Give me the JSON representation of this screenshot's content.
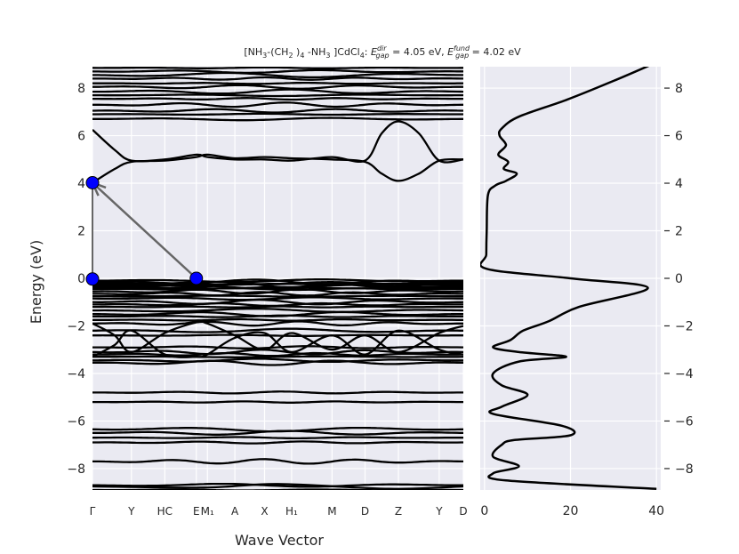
{
  "chart_data": [
    {
      "type": "line",
      "title": "[NH3-(CH2 )4 -NH3 ]CdCl4: E_gap^dir = 4.05 eV, E_gap^fund = 4.02 eV",
      "title_parts": {
        "formula_a": "[NH",
        "sub_1": "3",
        "formula_b": "-(CH",
        "sub_2": "2",
        "formula_c": " )",
        "sub_3": "4",
        "formula_d": " -NH",
        "sub_4": "3",
        "formula_e": " ]CdCl",
        "sub_5": "4",
        "formula_f": ": ",
        "egap_symbol": "E",
        "dir_superscript": "dir",
        "gap_subscript": "gap",
        "dir_value": " = 4.05 eV, ",
        "fund_superscript": "fund",
        "fund_value": " = 4.02 eV"
      },
      "xlabel": "Wave Vector",
      "ylabel": "Energy (eV)",
      "ylim": [
        -8.9,
        8.9
      ],
      "yticks": [
        -8,
        -6,
        -4,
        -2,
        0,
        2,
        4,
        6,
        8
      ],
      "ytick_labels": [
        "−8",
        "−6",
        "−4",
        "−2",
        "0",
        "2",
        "4",
        "6",
        "8"
      ],
      "high_symmetry_points": [
        {
          "label": "Γ",
          "x": 0.0
        },
        {
          "label": "Y",
          "x": 0.105
        },
        {
          "label": "HC",
          "x": 0.195
        },
        {
          "label": "E",
          "x": 0.28
        },
        {
          "label": "M₁",
          "x": 0.31
        },
        {
          "label": "A",
          "x": 0.384
        },
        {
          "label": "X",
          "x": 0.464
        },
        {
          "label": "H₁",
          "x": 0.537
        },
        {
          "label": "M",
          "x": 0.646
        },
        {
          "label": "D",
          "x": 0.735
        },
        {
          "label": "Z",
          "x": 0.825
        },
        {
          "label": "Y",
          "x": 0.935
        },
        {
          "label": "D",
          "x": 1.0
        }
      ],
      "band_edges": {
        "cbm": {
          "x": 0.0,
          "y": 4.02
        },
        "vbm_direct": {
          "x": 0.0,
          "y": -0.03
        },
        "vbm_fund": {
          "x": 0.28,
          "y": 0.0
        }
      },
      "bands": {
        "valence_flat": [
          -0.1,
          -0.15,
          -0.2,
          -0.25,
          -0.3,
          -0.35,
          -0.4,
          -0.45,
          -0.55,
          -0.65,
          -0.75,
          -0.85,
          -1.0,
          -1.1,
          -1.2,
          -1.35,
          -1.5,
          -1.6,
          -1.75,
          -1.9,
          -2.2,
          -2.4,
          -2.9,
          -3.1,
          -3.2,
          -3.3,
          -3.45,
          -3.55,
          -4.8,
          -5.2,
          -6.35,
          -6.5,
          -6.7,
          -6.9,
          -7.7,
          -8.7,
          -8.9
        ],
        "conduction_flat": [
          6.7,
          6.9,
          7.05,
          7.3,
          7.55,
          7.7,
          7.85,
          8.05,
          8.2,
          8.4,
          8.55,
          8.7,
          8.85
        ],
        "dispersive": [
          {
            "x": [
              0.0,
              0.06,
              0.105,
              0.195,
              0.28,
              0.31,
              0.384,
              0.464,
              0.537,
              0.646,
              0.735,
              0.78,
              0.825,
              0.88,
              0.935,
              1.0
            ],
            "y": [
              4.02,
              4.6,
              4.9,
              4.95,
              5.1,
              5.2,
              5.05,
              5.1,
              5.05,
              5.0,
              4.9,
              4.4,
              4.1,
              4.4,
              4.95,
              5.0
            ]
          },
          {
            "x": [
              0.0,
              0.06,
              0.105,
              0.195,
              0.28,
              0.31,
              0.384,
              0.464,
              0.537,
              0.646,
              0.735,
              0.78,
              0.825,
              0.88,
              0.935,
              1.0
            ],
            "y": [
              6.25,
              5.4,
              4.95,
              5.0,
              5.2,
              5.1,
              5.0,
              5.0,
              4.95,
              5.1,
              4.95,
              6.1,
              6.6,
              6.1,
              4.95,
              5.0
            ]
          },
          {
            "x": [
              0.0,
              0.06,
              0.105,
              0.195,
              0.28,
              0.31,
              0.384,
              0.464,
              0.537,
              0.646,
              0.735,
              0.825,
              0.935,
              1.0
            ],
            "y": [
              -1.9,
              -2.4,
              -3.1,
              -2.3,
              -1.85,
              -1.9,
              -2.4,
              -3.0,
              -2.3,
              -3.0,
              -2.4,
              -3.1,
              -2.3,
              -2.0
            ]
          },
          {
            "x": [
              0.0,
              0.06,
              0.105,
              0.195,
              0.28,
              0.31,
              0.384,
              0.464,
              0.537,
              0.646,
              0.735,
              0.825,
              0.935,
              1.0
            ],
            "y": [
              -3.3,
              -2.8,
              -2.2,
              -3.2,
              -3.3,
              -3.2,
              -2.5,
              -2.3,
              -3.1,
              -2.4,
              -3.2,
              -2.2,
              -3.0,
              -3.2
            ]
          },
          {
            "x": [
              0.0,
              0.3,
              0.5,
              0.8,
              1.0
            ],
            "y": [
              -8.75,
              -8.8,
              -8.65,
              -8.85,
              -8.75
            ]
          }
        ]
      }
    },
    {
      "type": "line",
      "xlabel": "",
      "ylabel": "",
      "xlim": [
        -1,
        41
      ],
      "ylim": [
        -8.9,
        8.9
      ],
      "xticks": [
        0,
        20,
        40
      ],
      "xtick_labels": [
        "0",
        "20",
        "40"
      ],
      "yticks": [
        -8,
        -6,
        -4,
        -2,
        0,
        2,
        4,
        6,
        8
      ],
      "ytick_labels": [
        "−8",
        "−6",
        "−4",
        "−2",
        "0",
        "2",
        "4",
        "6",
        "8"
      ],
      "series": [
        {
          "x": [
            39.0,
            30.0,
            19.0,
            8.0,
            4.0,
            3.5,
            5.0,
            3.2,
            5.5,
            4.5,
            7.5,
            5.0,
            2.5,
            0.8,
            0.5,
            0.4,
            0.5,
            20.0,
            38.0,
            22.0,
            15.0,
            9.0,
            6.0,
            2.0,
            8.0,
            19.0,
            8.0,
            2.0,
            4.0,
            10.0,
            4.0,
            2.0,
            18.0,
            20.0,
            7.0,
            4.0,
            2.0,
            8.0,
            2.0,
            5.0,
            40.0
          ],
          "y": [
            9.0,
            8.3,
            7.5,
            6.8,
            6.3,
            6.0,
            5.6,
            5.2,
            4.9,
            4.6,
            4.4,
            4.1,
            3.9,
            3.5,
            2.0,
            1.0,
            0.4,
            0.0,
            -0.4,
            -1.2,
            -1.8,
            -2.2,
            -2.6,
            -2.9,
            -3.1,
            -3.3,
            -3.5,
            -4.0,
            -4.5,
            -4.9,
            -5.4,
            -5.7,
            -6.2,
            -6.6,
            -6.8,
            -7.0,
            -7.5,
            -7.9,
            -8.2,
            -8.5,
            -8.85
          ]
        }
      ]
    }
  ],
  "colors": {
    "background": "#eaeaf2",
    "grid": "#ffffff",
    "line": "#000000",
    "marker": "#0000ff",
    "arrow": "#666666",
    "text": "#262626"
  }
}
